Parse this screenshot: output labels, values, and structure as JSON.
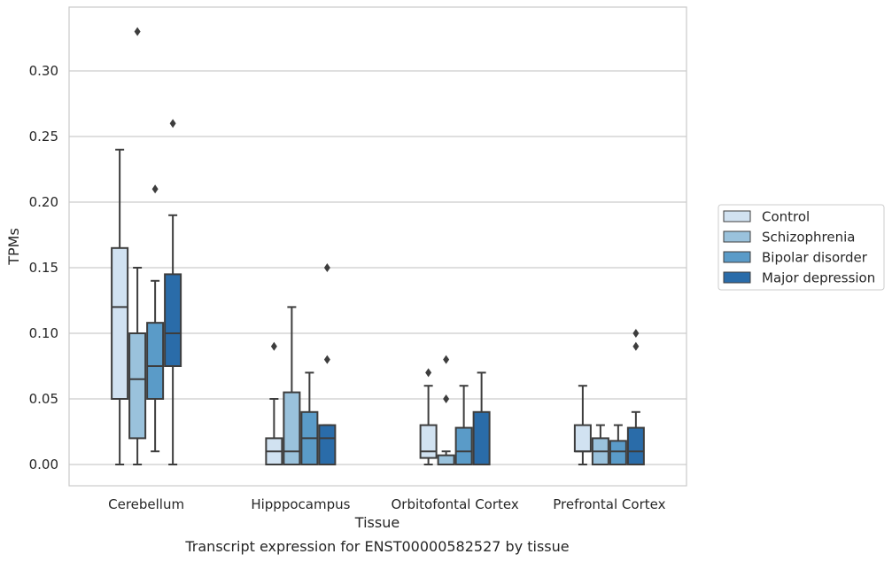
{
  "caption": "Transcript expression for ENST00000582527 by tissue",
  "chart_data": {
    "type": "boxplot",
    "xlabel": "Tissue",
    "ylabel": "TPMs",
    "ylim": [
      -0.016,
      0.348
    ],
    "yticks": [
      "0.00",
      "0.05",
      "0.10",
      "0.15",
      "0.20",
      "0.25",
      "0.30"
    ],
    "grid": true,
    "legend_position": "right",
    "categories": [
      "Cerebellum",
      "Hipppocampus",
      "Orbitofontal Cortex",
      "Prefrontal Cortex"
    ],
    "series": [
      {
        "name": "Control",
        "color": "#d1e2f1",
        "boxes": [
          {
            "whislo": 0.0,
            "q1": 0.05,
            "med": 0.12,
            "q3": 0.165,
            "whishi": 0.24,
            "fliers": []
          },
          {
            "whislo": 0.0,
            "q1": 0.0,
            "med": 0.01,
            "q3": 0.02,
            "whishi": 0.05,
            "fliers": [
              0.09
            ]
          },
          {
            "whislo": 0.0,
            "q1": 0.005,
            "med": 0.01,
            "q3": 0.03,
            "whishi": 0.06,
            "fliers": [
              0.07
            ]
          },
          {
            "whislo": 0.0,
            "q1": 0.01,
            "med": 0.01,
            "q3": 0.03,
            "whishi": 0.06,
            "fliers": []
          }
        ]
      },
      {
        "name": "Schizophrenia",
        "color": "#9ac2dc",
        "boxes": [
          {
            "whislo": 0.0,
            "q1": 0.02,
            "med": 0.065,
            "q3": 0.1,
            "whishi": 0.15,
            "fliers": [
              0.33
            ]
          },
          {
            "whislo": 0.0,
            "q1": 0.0,
            "med": 0.01,
            "q3": 0.055,
            "whishi": 0.12,
            "fliers": []
          },
          {
            "whislo": 0.0,
            "q1": 0.0,
            "med": 0.0,
            "q3": 0.007,
            "whishi": 0.01,
            "fliers": [
              0.05,
              0.08
            ]
          },
          {
            "whislo": 0.0,
            "q1": 0.0,
            "med": 0.01,
            "q3": 0.02,
            "whishi": 0.03,
            "fliers": []
          }
        ]
      },
      {
        "name": "Bipolar disorder",
        "color": "#5a9bc8",
        "boxes": [
          {
            "whislo": 0.01,
            "q1": 0.05,
            "med": 0.075,
            "q3": 0.108,
            "whishi": 0.14,
            "fliers": [
              0.21
            ]
          },
          {
            "whislo": 0.0,
            "q1": 0.0,
            "med": 0.02,
            "q3": 0.04,
            "whishi": 0.07,
            "fliers": []
          },
          {
            "whislo": 0.0,
            "q1": 0.0,
            "med": 0.01,
            "q3": 0.028,
            "whishi": 0.06,
            "fliers": []
          },
          {
            "whislo": 0.0,
            "q1": 0.0,
            "med": 0.01,
            "q3": 0.018,
            "whishi": 0.03,
            "fliers": []
          }
        ]
      },
      {
        "name": "Major depression",
        "color": "#2a6ca9",
        "boxes": [
          {
            "whislo": 0.0,
            "q1": 0.075,
            "med": 0.1,
            "q3": 0.145,
            "whishi": 0.19,
            "fliers": [
              0.26
            ]
          },
          {
            "whislo": 0.0,
            "q1": 0.0,
            "med": 0.02,
            "q3": 0.03,
            "whishi": 0.03,
            "fliers": [
              0.08,
              0.15
            ]
          },
          {
            "whislo": 0.0,
            "q1": 0.0,
            "med": 0.0,
            "q3": 0.04,
            "whishi": 0.07,
            "fliers": []
          },
          {
            "whislo": 0.0,
            "q1": 0.0,
            "med": 0.01,
            "q3": 0.028,
            "whishi": 0.04,
            "fliers": [
              0.09,
              0.1
            ]
          }
        ]
      }
    ]
  }
}
